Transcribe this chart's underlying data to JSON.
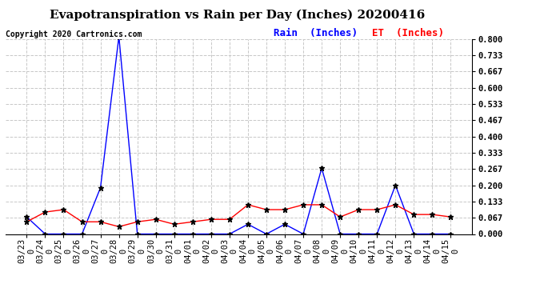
{
  "title": "Evapotranspiration vs Rain per Day (Inches) 20200416",
  "copyright_text": "Copyright 2020 Cartronics.com",
  "legend_rain": "Rain  (Inches)",
  "legend_et": "ET  (Inches)",
  "dates": [
    "03/23",
    "03/24",
    "03/25",
    "03/26",
    "03/27",
    "03/28",
    "03/29",
    "03/30",
    "03/31",
    "04/01",
    "04/02",
    "04/03",
    "04/04",
    "04/05",
    "04/06",
    "04/07",
    "04/08",
    "04/09",
    "04/10",
    "04/11",
    "04/12",
    "04/13",
    "04/14",
    "04/15"
  ],
  "dates2": [
    "0",
    "0",
    "0",
    "0",
    "0",
    "0",
    "0",
    "0",
    "0",
    "0",
    "0",
    "0",
    "0",
    "0",
    "0",
    "0",
    "0",
    "0",
    "0",
    "0",
    "0",
    "0",
    "0",
    "0"
  ],
  "rain": [
    0.07,
    0.0,
    0.0,
    0.0,
    0.19,
    0.81,
    0.0,
    0.0,
    0.0,
    0.0,
    0.0,
    0.0,
    0.04,
    0.0,
    0.04,
    0.0,
    0.27,
    0.0,
    0.0,
    0.0,
    0.2,
    0.0,
    0.0,
    0.0
  ],
  "et": [
    0.05,
    0.09,
    0.1,
    0.05,
    0.05,
    0.03,
    0.05,
    0.06,
    0.04,
    0.05,
    0.06,
    0.06,
    0.12,
    0.1,
    0.1,
    0.12,
    0.12,
    0.07,
    0.1,
    0.1,
    0.12,
    0.08,
    0.08,
    0.07
  ],
  "rain_color": "blue",
  "et_color": "red",
  "marker_color": "black",
  "ylim": [
    0.0,
    0.8
  ],
  "yticks": [
    0.0,
    0.067,
    0.133,
    0.2,
    0.267,
    0.333,
    0.4,
    0.467,
    0.533,
    0.6,
    0.667,
    0.733,
    0.8
  ],
  "ytick_labels": [
    "0.000",
    "0.067",
    "0.133",
    "0.200",
    "0.267",
    "0.333",
    "0.400",
    "0.467",
    "0.533",
    "0.600",
    "0.667",
    "0.733",
    "0.800"
  ],
  "background_color": "#ffffff",
  "grid_color": "#c8c8c8",
  "title_fontsize": 11,
  "tick_fontsize": 7.5,
  "copyright_fontsize": 7,
  "legend_fontsize": 9
}
